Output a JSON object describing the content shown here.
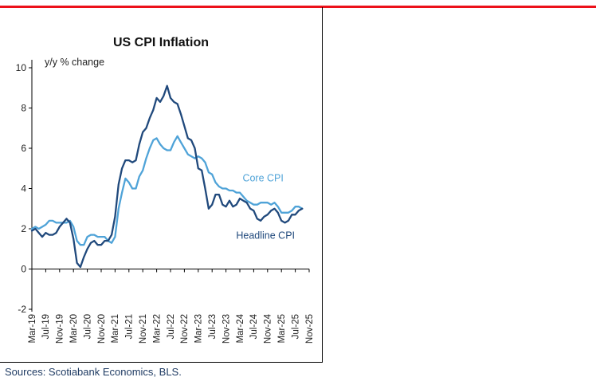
{
  "page": {
    "title": "US CPI Inflation",
    "y_axis_note": "y/y % change",
    "sources": "Sources: Scotiabank Economics, BLS.",
    "accent_color": "#ec111a"
  },
  "chart_data": {
    "type": "line",
    "title": "US CPI Inflation",
    "ylabel": "y/y % change",
    "ylim": [
      -2,
      10
    ],
    "y_ticks": [
      -2,
      0,
      2,
      4,
      6,
      8,
      10
    ],
    "grid": false,
    "legend_position": "inline-annotations",
    "x_unit": "monthly from Mar-19 to Sep-25",
    "x_range": [
      0,
      80
    ],
    "x_tick_positions": [
      0,
      4,
      8,
      12,
      16,
      20,
      24,
      28,
      32,
      36,
      40,
      44,
      48,
      52,
      56,
      60,
      64,
      68,
      72,
      76,
      80
    ],
    "x_tick_labels": [
      "Mar-19",
      "Jul-19",
      "Nov-19",
      "Mar-20",
      "Jul-20",
      "Nov-20",
      "Mar-21",
      "Jul-21",
      "Nov-21",
      "Mar-22",
      "Jul-22",
      "Nov-22",
      "Mar-23",
      "Jul-23",
      "Nov-23",
      "Mar-24",
      "Jul-24",
      "Nov-24",
      "Mar-25",
      "Jul-25",
      "Nov-25"
    ],
    "series": [
      {
        "name": "Core CPI",
        "color": "#4fa3d8",
        "label": {
          "text": "Core CPI",
          "x": 66.7,
          "y": 4.35
        },
        "values": [
          2.0,
          2.1,
          2.0,
          2.1,
          2.2,
          2.4,
          2.4,
          2.3,
          2.3,
          2.3,
          2.3,
          2.4,
          2.1,
          1.4,
          1.2,
          1.2,
          1.6,
          1.7,
          1.7,
          1.6,
          1.6,
          1.6,
          1.4,
          1.3,
          1.6,
          3.0,
          3.8,
          4.5,
          4.3,
          4.0,
          4.0,
          4.6,
          4.9,
          5.5,
          6.0,
          6.4,
          6.5,
          6.2,
          6.0,
          5.9,
          5.9,
          6.3,
          6.6,
          6.3,
          6.0,
          5.7,
          5.6,
          5.5,
          5.6,
          5.5,
          5.3,
          4.8,
          4.7,
          4.3,
          4.1,
          4.0,
          4.0,
          3.9,
          3.9,
          3.8,
          3.8,
          3.6,
          3.4,
          3.3,
          3.2,
          3.2,
          3.3,
          3.3,
          3.3,
          3.2,
          3.3,
          3.1,
          2.8,
          2.8,
          2.8,
          2.9,
          3.1,
          3.1,
          3.0
        ]
      },
      {
        "name": "Headline CPI",
        "color": "#20497c",
        "label": {
          "text": "Headline CPI",
          "x": 67.4,
          "y": 1.5
        },
        "values": [
          1.9,
          2.0,
          1.8,
          1.6,
          1.8,
          1.7,
          1.7,
          1.8,
          2.1,
          2.3,
          2.5,
          2.3,
          1.5,
          0.3,
          0.1,
          0.6,
          1.0,
          1.3,
          1.4,
          1.2,
          1.2,
          1.4,
          1.4,
          1.7,
          2.6,
          4.2,
          5.0,
          5.4,
          5.4,
          5.3,
          5.4,
          6.2,
          6.8,
          7.0,
          7.5,
          7.9,
          8.5,
          8.3,
          8.6,
          9.1,
          8.5,
          8.3,
          8.2,
          7.7,
          7.1,
          6.5,
          6.4,
          6.0,
          5.0,
          4.9,
          4.0,
          3.0,
          3.2,
          3.7,
          3.7,
          3.2,
          3.1,
          3.4,
          3.1,
          3.2,
          3.5,
          3.4,
          3.3,
          3.0,
          2.9,
          2.5,
          2.4,
          2.6,
          2.7,
          2.9,
          3.0,
          2.8,
          2.4,
          2.3,
          2.4,
          2.7,
          2.7,
          2.9,
          3.0
        ]
      }
    ]
  }
}
